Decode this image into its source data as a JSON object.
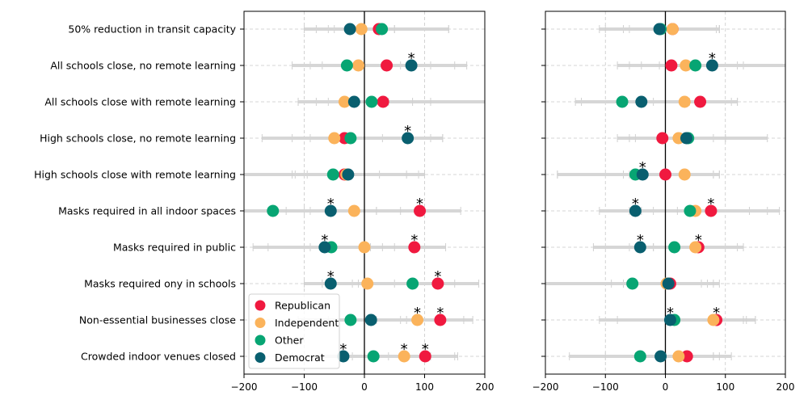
{
  "chart_data": [
    {
      "type": "scatter",
      "panel": "left",
      "xlim": [
        -200,
        200
      ],
      "xticks": [
        -200,
        -100,
        0,
        100,
        200
      ],
      "xtick_labels": [
        "−200",
        "−100",
        "0",
        "100",
        "200"
      ],
      "grid": true,
      "categories": [
        "50% reduction in transit capacity",
        "All schools close, no remote learning",
        "All schools close with remote learning",
        "High schools close, no remote learning",
        "High schools close with remote learning",
        "Masks required in all indoor spaces",
        "Masks required in public",
        "Masks required ony in schools",
        "Non-essential businesses close",
        "Crowded indoor venues closed"
      ],
      "series": [
        {
          "name": "Republican",
          "color": "#f0193f",
          "values": [
            24,
            37,
            31,
            -33,
            -33,
            92,
            83,
            122,
            126,
            101
          ],
          "significant": [
            false,
            false,
            false,
            false,
            false,
            true,
            true,
            true,
            true,
            true
          ],
          "ci": [
            [
              -50,
              140
            ],
            [
              -90,
              170
            ],
            [
              -60,
              200
            ],
            [
              -90,
              110
            ],
            [
              -95,
              90
            ],
            [
              20,
              160
            ],
            [
              10,
              135
            ],
            [
              50,
              190
            ],
            [
              70,
              180
            ],
            [
              40,
              155
            ]
          ]
        },
        {
          "name": "Independent",
          "color": "#fbb35b",
          "values": [
            -5,
            -10,
            -33,
            -50,
            -30,
            -17,
            0,
            5,
            88,
            66
          ],
          "significant": [
            false,
            false,
            false,
            false,
            false,
            false,
            false,
            false,
            true,
            true
          ],
          "ci": [
            [
              -60,
              50
            ],
            [
              -70,
              60
            ],
            [
              -110,
              40
            ],
            [
              -120,
              30
            ],
            [
              -115,
              25
            ],
            [
              -90,
              60
            ],
            [
              -90,
              90
            ],
            [
              -70,
              80
            ],
            [
              20,
              165
            ],
            [
              -20,
              150
            ]
          ]
        },
        {
          "name": "Other",
          "color": "#07a573",
          "values": [
            29,
            -29,
            12,
            -23,
            -52,
            -152,
            -55,
            80,
            -23,
            15
          ],
          "significant": [
            false,
            false,
            false,
            false,
            false,
            false,
            false,
            false,
            false,
            false
          ],
          "ci": [
            [
              -80,
              140
            ],
            [
              -120,
              110
            ],
            [
              -80,
              110
            ],
            [
              -170,
              130
            ],
            [
              -200,
              100
            ],
            [
              -200,
              -100
            ],
            [
              -185,
              50
            ],
            [
              -20,
              150
            ],
            [
              -110,
              60
            ],
            [
              -75,
              110
            ]
          ]
        },
        {
          "name": "Democrat",
          "color": "#095f6f",
          "values": [
            -24,
            78,
            -17,
            72,
            -27,
            -56,
            -66,
            -56,
            11,
            -35
          ],
          "significant": [
            false,
            true,
            false,
            true,
            false,
            true,
            true,
            true,
            false,
            true
          ],
          "ci": [
            [
              -100,
              50
            ],
            [
              -10,
              150
            ],
            [
              -110,
              80
            ],
            [
              0,
              130
            ],
            [
              -120,
              70
            ],
            [
              -130,
              20
            ],
            [
              -160,
              30
            ],
            [
              -100,
              -10
            ],
            [
              -60,
              90
            ],
            [
              -120,
              60
            ]
          ]
        }
      ]
    },
    {
      "type": "scatter",
      "panel": "right",
      "xlim": [
        -200,
        200
      ],
      "xticks": [
        -200,
        -100,
        0,
        100,
        200
      ],
      "xtick_labels": [
        "−200",
        "−100",
        "0",
        "100",
        "200"
      ],
      "grid": true,
      "series": [
        {
          "name": "Republican",
          "color": "#f0193f",
          "values": [
            12,
            10,
            58,
            -5,
            0,
            76,
            55,
            8,
            85,
            36
          ],
          "significant": [
            false,
            false,
            false,
            false,
            false,
            true,
            true,
            false,
            true,
            false
          ],
          "ci": [
            [
              -70,
              90
            ],
            [
              -80,
              120
            ],
            [
              -20,
              120
            ],
            [
              -80,
              80
            ],
            [
              -70,
              80
            ],
            [
              -20,
              170
            ],
            [
              -20,
              130
            ],
            [
              -60,
              90
            ],
            [
              20,
              150
            ],
            [
              -40,
              110
            ]
          ]
        },
        {
          "name": "Independent",
          "color": "#fbb35b",
          "values": [
            12,
            34,
            32,
            22,
            32,
            50,
            50,
            2,
            80,
            22
          ],
          "significant": [
            false,
            false,
            false,
            false,
            false,
            false,
            false,
            false,
            false,
            false
          ],
          "ci": [
            [
              -60,
              85
            ],
            [
              -60,
              130
            ],
            [
              -40,
              110
            ],
            [
              -60,
              100
            ],
            [
              -60,
              90
            ],
            [
              -40,
              140
            ],
            [
              -20,
              120
            ],
            [
              -70,
              70
            ],
            [
              0,
              150
            ],
            [
              -50,
              90
            ]
          ]
        },
        {
          "name": "Other",
          "color": "#07a573",
          "values": [
            -8,
            50,
            -72,
            38,
            -50,
            41,
            15,
            -55,
            15,
            -42
          ],
          "significant": [
            false,
            false,
            false,
            false,
            false,
            false,
            false,
            false,
            false,
            false
          ],
          "ci": [
            [
              -110,
              90
            ],
            [
              -40,
              200
            ],
            [
              -140,
              40
            ],
            [
              -60,
              170
            ],
            [
              -180,
              80
            ],
            [
              -60,
              190
            ],
            [
              -60,
              130
            ],
            [
              -200,
              60
            ],
            [
              -110,
              135
            ],
            [
              -160,
              80
            ]
          ]
        },
        {
          "name": "Democrat",
          "color": "#095f6f",
          "values": [
            -10,
            78,
            -40,
            35,
            -38,
            -50,
            -42,
            5,
            8,
            -8
          ],
          "significant": [
            false,
            true,
            false,
            false,
            true,
            true,
            true,
            false,
            true,
            false
          ],
          "ci": [
            [
              -100,
              90
            ],
            [
              -10,
              200
            ],
            [
              -150,
              120
            ],
            [
              -50,
              100
            ],
            [
              -180,
              90
            ],
            [
              -110,
              20
            ],
            [
              -120,
              50
            ],
            [
              -90,
              80
            ],
            [
              -80,
              130
            ],
            [
              -100,
              80
            ]
          ]
        }
      ]
    }
  ],
  "legend": {
    "placement": "lower-left",
    "items": [
      {
        "label": "Republican",
        "color": "#f0193f"
      },
      {
        "label": "Independent",
        "color": "#fbb35b"
      },
      {
        "label": "Other",
        "color": "#07a573"
      },
      {
        "label": "Democrat",
        "color": "#095f6f"
      }
    ]
  },
  "significance_marker": "*"
}
